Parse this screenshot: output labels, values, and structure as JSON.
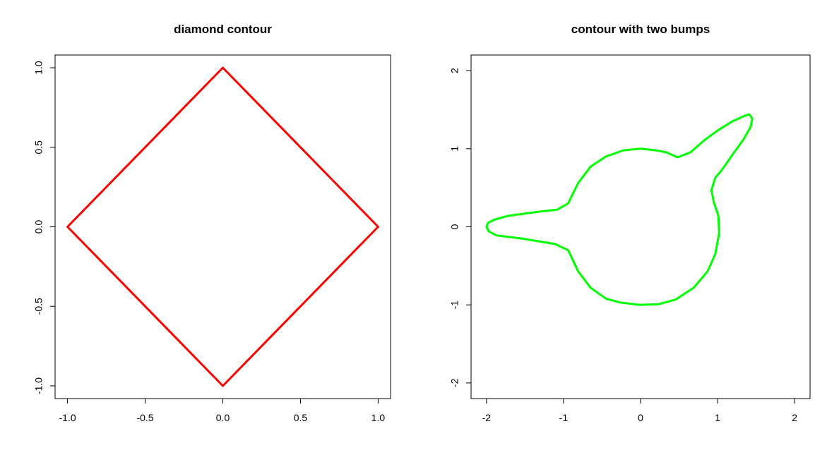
{
  "chart_data": [
    {
      "type": "line",
      "title": "diamond contour",
      "xlabel": "",
      "ylabel": "",
      "xlim": [
        -1.08,
        1.08
      ],
      "ylim": [
        -1.08,
        1.08
      ],
      "xticks": [
        -1.0,
        -0.5,
        0.0,
        0.5,
        1.0
      ],
      "xtick_labels": [
        "-1.0",
        "-0.5",
        "0.0",
        "0.5",
        "1.0"
      ],
      "yticks": [
        -1.0,
        -0.5,
        0.0,
        0.5,
        1.0
      ],
      "ytick_labels": [
        "-1.0",
        "-0.5",
        "0.0",
        "0.5",
        "1.0"
      ],
      "grid": false,
      "series": [
        {
          "color": "#ff0000",
          "closed": true,
          "x": [
            0,
            1,
            0,
            -1
          ],
          "y": [
            1,
            0,
            -1,
            0
          ]
        }
      ]
    },
    {
      "type": "line",
      "title": "contour with two bumps",
      "xlabel": "",
      "ylabel": "",
      "xlim": [
        -2.2,
        2.2
      ],
      "ylim": [
        -2.2,
        2.2
      ],
      "xticks": [
        -2,
        -1,
        0,
        1,
        2
      ],
      "xtick_labels": [
        "-2",
        "-1",
        "0",
        "1",
        "2"
      ],
      "yticks": [
        -2,
        -1,
        0,
        1,
        2
      ],
      "ytick_labels": [
        "-2",
        "-1",
        "0",
        "1",
        "2"
      ],
      "grid": false,
      "series": [
        {
          "color": "#00ff00",
          "closed": true,
          "x": [
            0,
            0.19,
            0.33,
            0.48,
            0.65,
            0.83,
            1.01,
            1.19,
            1.35,
            1.41,
            1.45,
            1.43,
            1.33,
            1.19,
            1.05,
            0.97,
            0.92,
            0.95,
            1.01,
            1.02,
            0.97,
            0.87,
            0.69,
            0.46,
            0.24,
            0,
            -0.26,
            -0.45,
            -0.65,
            -0.81,
            -0.94,
            -1.11,
            -1.54,
            -1.87,
            -1.97,
            -2.0,
            -1.98,
            -1.9,
            -1.72,
            -1.35,
            -1.08,
            -0.94,
            -0.81,
            -0.65,
            -0.45,
            -0.22
          ],
          "y": [
            1,
            0.98,
            0.955,
            0.89,
            0.955,
            1.11,
            1.24,
            1.35,
            1.42,
            1.44,
            1.39,
            1.28,
            1.11,
            0.92,
            0.72,
            0.63,
            0.47,
            0.32,
            0.14,
            -0.08,
            -0.35,
            -0.57,
            -0.78,
            -0.93,
            -0.99,
            -1,
            -0.97,
            -0.92,
            -0.78,
            -0.57,
            -0.3,
            -0.22,
            -0.15,
            -0.11,
            -0.06,
            0,
            0.05,
            0.09,
            0.14,
            0.19,
            0.22,
            0.3,
            0.56,
            0.77,
            0.9,
            0.98
          ]
        }
      ]
    }
  ]
}
